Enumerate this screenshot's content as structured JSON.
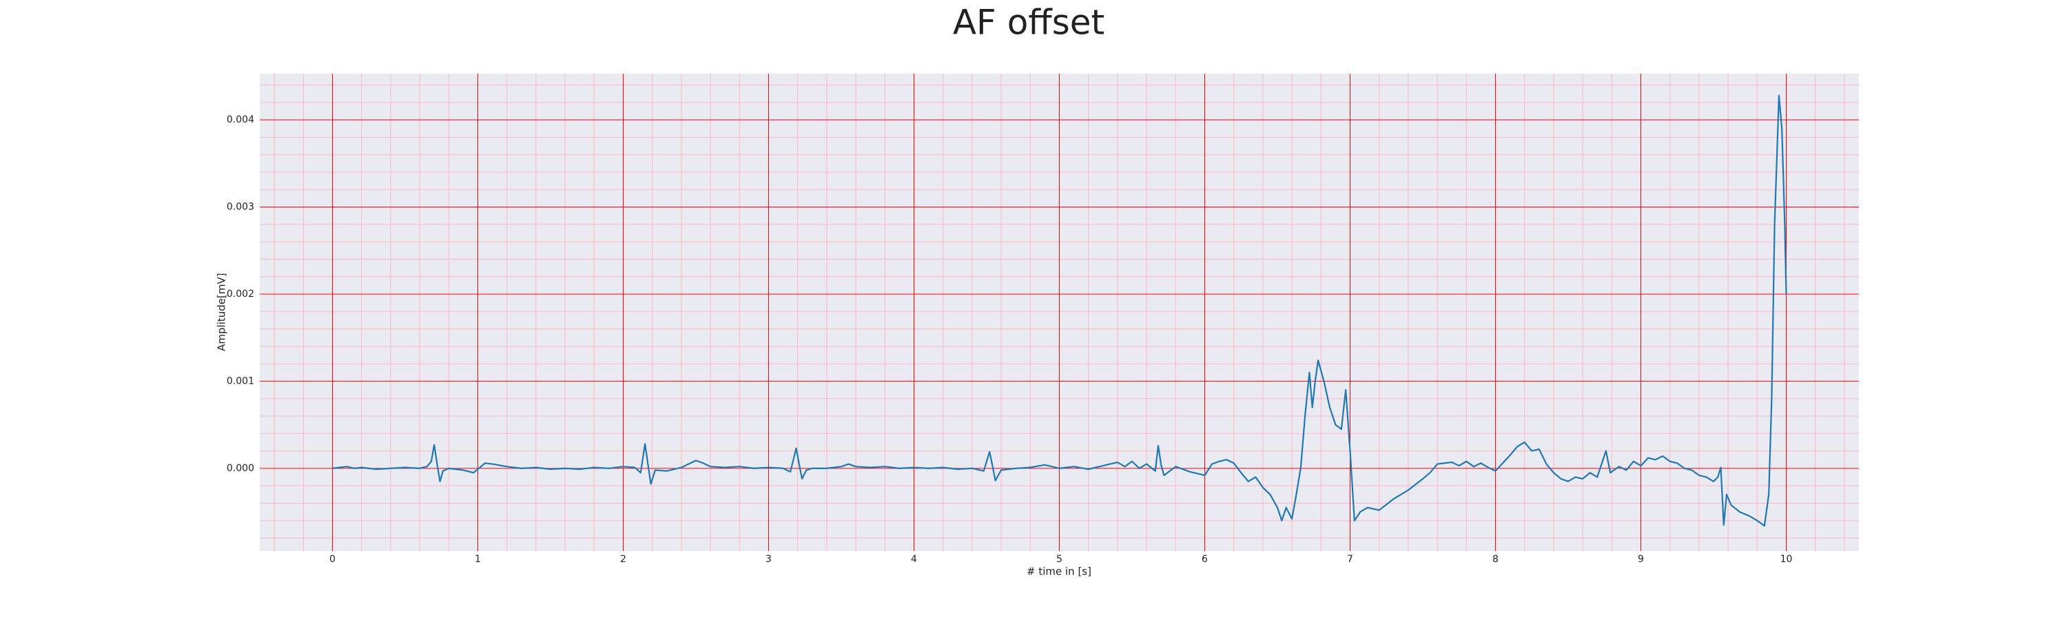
{
  "chart_data": {
    "type": "line",
    "title": "AF offset",
    "xlabel": "# time in [s]",
    "ylabel": "Amplitude[mV]",
    "x": [
      0,
      0.05,
      0.1,
      0.15,
      0.2,
      0.3,
      0.4,
      0.5,
      0.6,
      0.65,
      0.68,
      0.7,
      0.72,
      0.74,
      0.76,
      0.8,
      0.9,
      0.97,
      1.0,
      1.05,
      1.1,
      1.2,
      1.3,
      1.4,
      1.5,
      1.6,
      1.7,
      1.8,
      1.9,
      2.0,
      2.08,
      2.12,
      2.15,
      2.17,
      2.19,
      2.22,
      2.3,
      2.4,
      2.5,
      2.55,
      2.6,
      2.7,
      2.8,
      2.9,
      3.0,
      3.1,
      3.15,
      3.19,
      3.21,
      3.23,
      3.26,
      3.3,
      3.4,
      3.5,
      3.55,
      3.6,
      3.7,
      3.8,
      3.9,
      4.0,
      4.1,
      4.2,
      4.3,
      4.4,
      4.48,
      4.52,
      4.54,
      4.56,
      4.6,
      4.7,
      4.8,
      4.9,
      5.0,
      5.1,
      5.2,
      5.3,
      5.4,
      5.45,
      5.5,
      5.55,
      5.6,
      5.66,
      5.68,
      5.7,
      5.72,
      5.8,
      5.9,
      6.0,
      6.05,
      6.1,
      6.15,
      6.2,
      6.25,
      6.3,
      6.35,
      6.4,
      6.45,
      6.5,
      6.53,
      6.56,
      6.6,
      6.63,
      6.66,
      6.69,
      6.72,
      6.74,
      6.76,
      6.78,
      6.82,
      6.86,
      6.9,
      6.94,
      6.97,
      7.0,
      7.03,
      7.07,
      7.12,
      7.2,
      7.3,
      7.4,
      7.5,
      7.55,
      7.6,
      7.7,
      7.75,
      7.8,
      7.85,
      7.9,
      7.95,
      8.0,
      8.05,
      8.1,
      8.15,
      8.2,
      8.25,
      8.3,
      8.35,
      8.4,
      8.45,
      8.5,
      8.55,
      8.6,
      8.65,
      8.7,
      8.73,
      8.76,
      8.79,
      8.85,
      8.9,
      8.95,
      9.0,
      9.05,
      9.1,
      9.15,
      9.2,
      9.25,
      9.3,
      9.35,
      9.4,
      9.45,
      9.5,
      9.53,
      9.55,
      9.57,
      9.59,
      9.62,
      9.68,
      9.75,
      9.8,
      9.85,
      9.88,
      9.9,
      9.92,
      9.95,
      9.97,
      9.99,
      10.0
    ],
    "values": [
      0,
      1e-05,
      2e-05,
      0,
      1e-05,
      -1e-05,
      0,
      1e-05,
      0,
      2e-05,
      8e-05,
      0.00027,
      5e-05,
      -0.00015,
      -3e-05,
      0,
      -2e-05,
      -5e-05,
      -1e-05,
      6e-05,
      5e-05,
      2e-05,
      0,
      1e-05,
      -1e-05,
      0,
      -1e-05,
      1e-05,
      0,
      2e-05,
      1e-05,
      -5e-05,
      0.00028,
      5e-05,
      -0.00018,
      -2e-05,
      -3e-05,
      1e-05,
      9e-05,
      6e-05,
      2e-05,
      1e-05,
      2e-05,
      0,
      1e-05,
      0,
      -4e-05,
      0.00023,
      5e-05,
      -0.00012,
      -2e-05,
      0,
      0,
      2e-05,
      5e-05,
      2e-05,
      1e-05,
      2e-05,
      0,
      1e-05,
      0,
      1e-05,
      -1e-05,
      0,
      -3e-05,
      0.00019,
      3e-05,
      -0.00014,
      -2e-05,
      0,
      1e-05,
      4e-05,
      0,
      2e-05,
      -1e-05,
      3e-05,
      7e-05,
      2e-05,
      8e-05,
      0,
      5e-05,
      -3e-05,
      0.00026,
      4e-05,
      -8e-05,
      2e-05,
      -4e-05,
      -8e-05,
      5e-05,
      8e-05,
      0.0001,
      6e-05,
      -5e-05,
      -0.00015,
      -0.0001,
      -0.00022,
      -0.0003,
      -0.00045,
      -0.0006,
      -0.00045,
      -0.00058,
      -0.0003,
      0,
      0.0006,
      0.0011,
      0.0007,
      0.001,
      0.00124,
      0.001,
      0.0007,
      0.0005,
      0.00045,
      0.0009,
      0.0002,
      -0.0006,
      -0.0005,
      -0.00045,
      -0.00048,
      -0.00035,
      -0.00025,
      -0.00012,
      -5e-05,
      5e-05,
      7e-05,
      3e-05,
      8e-05,
      2e-05,
      6e-05,
      1e-05,
      -3e-05,
      6e-05,
      0.00015,
      0.00025,
      0.0003,
      0.0002,
      0.00022,
      5e-05,
      -5e-05,
      -0.00012,
      -0.00015,
      -0.0001,
      -0.00012,
      -5e-05,
      -0.0001,
      5e-05,
      0.0002,
      -5e-05,
      2e-05,
      -2e-05,
      8e-05,
      3e-05,
      0.00012,
      0.0001,
      0.00014,
      8e-05,
      6e-05,
      0,
      -2e-05,
      -8e-05,
      -0.0001,
      -0.00015,
      -0.0001,
      1e-05,
      -0.00065,
      -0.0003,
      -0.00042,
      -0.0005,
      -0.00055,
      -0.0006,
      -0.00066,
      -0.0003,
      0.0008,
      0.0028,
      0.00428,
      0.0039,
      0.0028,
      0.002
    ],
    "color": "#1f77b4",
    "xlim": [
      -0.5,
      10.5
    ],
    "ylim": [
      -0.00095,
      0.00453
    ],
    "xticks": [
      0,
      1,
      2,
      3,
      4,
      5,
      6,
      7,
      8,
      9,
      10
    ],
    "yticks": [
      {
        "value": 0,
        "label": "0.000"
      },
      {
        "value": 0.001,
        "label": "0.001"
      },
      {
        "value": 0.002,
        "label": "0.002"
      },
      {
        "value": 0.003,
        "label": "0.003"
      },
      {
        "value": 0.004,
        "label": "0.004"
      }
    ],
    "xminorticks": [
      -0.4,
      -0.2,
      0.2,
      0.4,
      0.6,
      0.8,
      1.2,
      1.4,
      1.6,
      1.8,
      2.2,
      2.4,
      2.6,
      2.8,
      3.2,
      3.4,
      3.6,
      3.8,
      4.2,
      4.4,
      4.6,
      4.8,
      5.2,
      5.4,
      5.6,
      5.8,
      6.2,
      6.4,
      6.6,
      6.8,
      7.2,
      7.4,
      7.6,
      7.8,
      8.2,
      8.4,
      8.6,
      8.8,
      9.2,
      9.4,
      9.6,
      9.8,
      10.2,
      10.4
    ],
    "yminorticks": [
      -0.0008,
      -0.0006,
      -0.0004,
      -0.0002,
      0.0002,
      0.0004,
      0.0006,
      0.0008,
      0.0012,
      0.0014,
      0.0016,
      0.0018,
      0.0022,
      0.0024,
      0.0026,
      0.0028,
      0.0032,
      0.0034,
      0.0036,
      0.0038,
      0.0042,
      0.0044
    ],
    "grid": true,
    "grid_color": "#ff0000",
    "minor_grid_color": "#ffb6c1",
    "background": "#eaeaf2"
  }
}
